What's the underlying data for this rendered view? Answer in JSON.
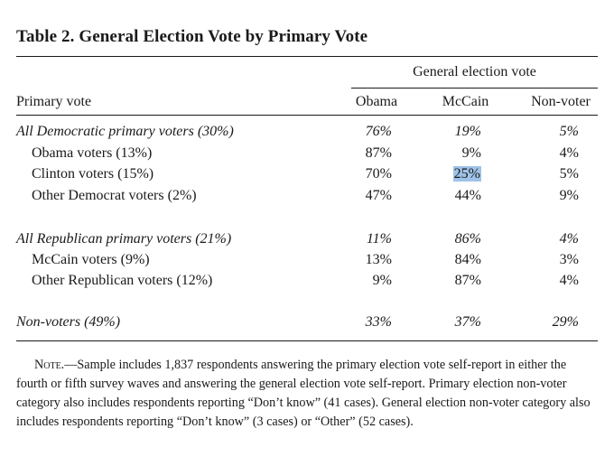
{
  "title": "Table 2.  General Election Vote by Primary Vote",
  "group_header": "General election vote",
  "columns": {
    "stub": "Primary vote",
    "c0": "Obama",
    "c1": "McCain",
    "c2": "Non-voter"
  },
  "rows": [
    {
      "label": "All Democratic primary voters (30%)",
      "values": [
        "76%",
        "19%",
        "5%"
      ]
    },
    {
      "label": "Obama voters (13%)",
      "values": [
        "87%",
        "9%",
        "4%"
      ]
    },
    {
      "label": "Clinton voters (15%)",
      "values": [
        "70%",
        "25%",
        "5%"
      ]
    },
    {
      "label": "Other Democrat voters (2%)",
      "values": [
        "47%",
        "44%",
        "9%"
      ]
    },
    {
      "label": "All Republican primary voters (21%)",
      "values": [
        "11%",
        "86%",
        "4%"
      ]
    },
    {
      "label": "McCain voters (9%)",
      "values": [
        "13%",
        "84%",
        "3%"
      ]
    },
    {
      "label": "Other Republican voters (12%)",
      "values": [
        "9%",
        "87%",
        "4%"
      ]
    },
    {
      "label": "Non-voters (49%)",
      "values": [
        "33%",
        "37%",
        "29%"
      ]
    }
  ],
  "highlight_color": "#9fc3e8",
  "note": {
    "label": "Note.",
    "text": "—Sample includes 1,837 respondents answering the primary election vote self-report in either the fourth or fifth survey waves and answering the general election vote self-report. Primary election non-voter category also includes respondents reporting “Don’t know” (41 cases). General election non-voter category also includes respondents reporting “Don’t know” (3 cases) or “Other” (52 cases)."
  }
}
